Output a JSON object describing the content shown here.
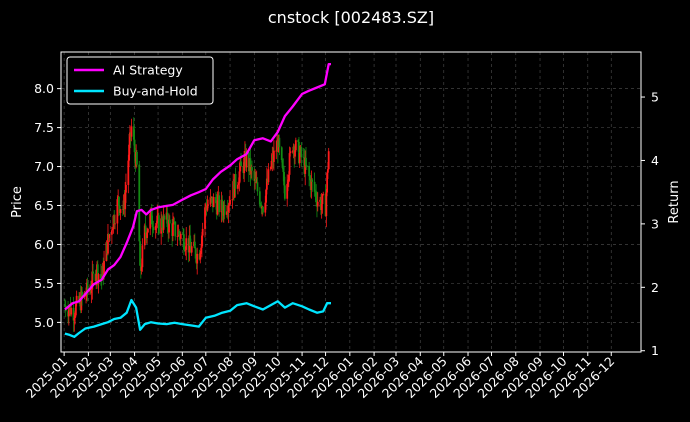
{
  "chart_data": {
    "type": "line",
    "title": "cnstock [002483.SZ]",
    "ylabel_left": "Price",
    "ylabel_right": "Return",
    "x_ticks": [
      "2025-01",
      "2025-02",
      "2025-03",
      "2025-04",
      "2025-05",
      "2025-06",
      "2025-07",
      "2025-08",
      "2025-09",
      "2025-10",
      "2025-11",
      "2025-12",
      "2026-01",
      "2026-02",
      "2026-03",
      "2026-04",
      "2026-05",
      "2026-06",
      "2026-07",
      "2026-08",
      "2026-09",
      "2026-10",
      "2026-11",
      "2026-12"
    ],
    "x_range": [
      "2024-12-28",
      "2027-01-08"
    ],
    "y_left_ticks": [
      "5.0",
      "5.5",
      "6.0",
      "6.5",
      "7.0",
      "7.5",
      "8.0"
    ],
    "y_left_range": [
      4.62,
      8.47
    ],
    "y_right_ticks": [
      "1",
      "2",
      "3",
      "4",
      "5"
    ],
    "y_right_range": [
      0.98,
      5.71
    ],
    "grid": true,
    "legend": {
      "position": "top-left"
    },
    "candle_colors": {
      "up": "#ff1a1a",
      "down": "#138a13"
    },
    "price_close": [
      [
        "2025-01-02",
        5.22
      ],
      [
        "2025-01-13",
        5.15
      ],
      [
        "2025-01-24",
        5.3
      ],
      [
        "2025-02-04",
        5.45
      ],
      [
        "2025-02-11",
        5.7
      ],
      [
        "2025-02-18",
        5.55
      ],
      [
        "2025-02-25",
        6.0
      ],
      [
        "2025-03-04",
        6.3
      ],
      [
        "2025-03-11",
        6.55
      ],
      [
        "2025-03-18",
        6.45
      ],
      [
        "2025-03-24",
        7.1
      ],
      [
        "2025-03-28",
        7.5
      ],
      [
        "2025-04-01",
        7.2
      ],
      [
        "2025-04-05",
        6.9
      ],
      [
        "2025-04-08",
        5.6
      ],
      [
        "2025-04-14",
        6.15
      ],
      [
        "2025-04-22",
        6.35
      ],
      [
        "2025-05-01",
        6.25
      ],
      [
        "2025-05-10",
        6.3
      ],
      [
        "2025-05-20",
        6.2
      ],
      [
        "2025-06-01",
        6.1
      ],
      [
        "2025-06-12",
        5.95
      ],
      [
        "2025-06-22",
        5.85
      ],
      [
        "2025-07-01",
        6.5
      ],
      [
        "2025-07-12",
        6.55
      ],
      [
        "2025-07-22",
        6.45
      ],
      [
        "2025-08-01",
        6.6
      ],
      [
        "2025-08-12",
        6.9
      ],
      [
        "2025-08-22",
        7.1
      ],
      [
        "2025-09-01",
        6.8
      ],
      [
        "2025-09-12",
        6.5
      ],
      [
        "2025-09-22",
        7.0
      ],
      [
        "2025-10-01",
        7.3
      ],
      [
        "2025-10-10",
        6.7
      ],
      [
        "2025-10-20",
        7.3
      ],
      [
        "2025-11-01",
        7.1
      ],
      [
        "2025-11-12",
        6.8
      ],
      [
        "2025-11-22",
        6.55
      ],
      [
        "2025-12-01",
        6.5
      ],
      [
        "2025-12-05",
        7.2
      ]
    ],
    "series": [
      {
        "name": "AI Strategy",
        "color": "#ff00ff",
        "points": [
          [
            "2025-01-02",
            1.65
          ],
          [
            "2025-01-12",
            1.75
          ],
          [
            "2025-01-20",
            1.78
          ],
          [
            "2025-01-30",
            1.92
          ],
          [
            "2025-02-08",
            2.05
          ],
          [
            "2025-02-18",
            2.12
          ],
          [
            "2025-02-26",
            2.28
          ],
          [
            "2025-03-06",
            2.35
          ],
          [
            "2025-03-14",
            2.48
          ],
          [
            "2025-03-22",
            2.7
          ],
          [
            "2025-03-30",
            2.95
          ],
          [
            "2025-04-04",
            3.2
          ],
          [
            "2025-04-10",
            3.22
          ],
          [
            "2025-04-16",
            3.15
          ],
          [
            "2025-04-22",
            3.22
          ],
          [
            "2025-05-01",
            3.26
          ],
          [
            "2025-05-10",
            3.28
          ],
          [
            "2025-05-20",
            3.3
          ],
          [
            "2025-06-01",
            3.38
          ],
          [
            "2025-06-12",
            3.45
          ],
          [
            "2025-06-22",
            3.5
          ],
          [
            "2025-07-01",
            3.55
          ],
          [
            "2025-07-10",
            3.7
          ],
          [
            "2025-07-20",
            3.82
          ],
          [
            "2025-08-01",
            3.92
          ],
          [
            "2025-08-10",
            4.02
          ],
          [
            "2025-08-22",
            4.1
          ],
          [
            "2025-09-01",
            4.32
          ],
          [
            "2025-09-12",
            4.35
          ],
          [
            "2025-09-22",
            4.3
          ],
          [
            "2025-10-01",
            4.45
          ],
          [
            "2025-10-10",
            4.7
          ],
          [
            "2025-10-20",
            4.85
          ],
          [
            "2025-11-01",
            5.05
          ],
          [
            "2025-11-10",
            5.1
          ],
          [
            "2025-11-20",
            5.15
          ],
          [
            "2025-11-30",
            5.2
          ],
          [
            "2025-12-05",
            5.52
          ],
          [
            "2025-12-08",
            5.52
          ]
        ]
      },
      {
        "name": "Buy-and-Hold",
        "color": "#00e5ff",
        "points": [
          [
            "2025-01-02",
            1.27
          ],
          [
            "2025-01-08",
            1.25
          ],
          [
            "2025-01-14",
            1.22
          ],
          [
            "2025-01-20",
            1.28
          ],
          [
            "2025-01-28",
            1.35
          ],
          [
            "2025-02-08",
            1.38
          ],
          [
            "2025-02-18",
            1.42
          ],
          [
            "2025-02-26",
            1.45
          ],
          [
            "2025-03-06",
            1.5
          ],
          [
            "2025-03-14",
            1.52
          ],
          [
            "2025-03-22",
            1.6
          ],
          [
            "2025-03-28",
            1.8
          ],
          [
            "2025-04-03",
            1.68
          ],
          [
            "2025-04-08",
            1.33
          ],
          [
            "2025-04-14",
            1.42
          ],
          [
            "2025-04-22",
            1.45
          ],
          [
            "2025-05-01",
            1.43
          ],
          [
            "2025-05-12",
            1.42
          ],
          [
            "2025-05-22",
            1.44
          ],
          [
            "2025-06-01",
            1.42
          ],
          [
            "2025-06-12",
            1.4
          ],
          [
            "2025-06-22",
            1.38
          ],
          [
            "2025-07-01",
            1.52
          ],
          [
            "2025-07-12",
            1.55
          ],
          [
            "2025-07-22",
            1.6
          ],
          [
            "2025-08-01",
            1.63
          ],
          [
            "2025-08-10",
            1.72
          ],
          [
            "2025-08-22",
            1.75
          ],
          [
            "2025-09-01",
            1.7
          ],
          [
            "2025-09-12",
            1.65
          ],
          [
            "2025-09-22",
            1.72
          ],
          [
            "2025-10-01",
            1.78
          ],
          [
            "2025-10-10",
            1.68
          ],
          [
            "2025-10-20",
            1.75
          ],
          [
            "2025-11-01",
            1.7
          ],
          [
            "2025-11-10",
            1.65
          ],
          [
            "2025-11-20",
            1.6
          ],
          [
            "2025-11-28",
            1.62
          ],
          [
            "2025-12-03",
            1.75
          ],
          [
            "2025-12-08",
            1.75
          ]
        ]
      }
    ]
  }
}
